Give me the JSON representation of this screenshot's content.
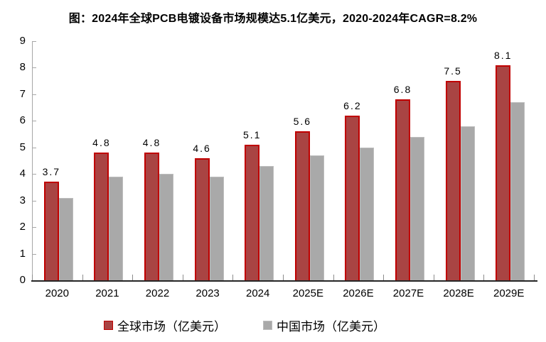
{
  "title": "图：2024年全球PCB电镀设备市场规模达5.1亿美元，2020-2024年CAGR=8.2%",
  "colors": {
    "global_fill": "#A94443",
    "global_border": "#C00000",
    "china_fill": "#A9A9A9",
    "china_border": "#BDBDBD",
    "y_axis": "#A6A6A6",
    "x_axis": "#262626",
    "tick": "#8C8C8C",
    "text": "#000000",
    "background": "#FFFFFF"
  },
  "chart_data": {
    "type": "bar",
    "title": "图：2024年全球PCB电镀设备市场规模达5.1亿美元，2020-2024年CAGR=8.2%",
    "categories": [
      "2020",
      "2021",
      "2022",
      "2023",
      "2024",
      "2025E",
      "2026E",
      "2027E",
      "2028E",
      "2029E"
    ],
    "series": [
      {
        "name": "全球市场（亿美元）",
        "values": [
          3.7,
          4.8,
          4.8,
          4.6,
          5.1,
          5.6,
          6.2,
          6.8,
          7.5,
          8.1
        ],
        "color": "#A94443",
        "border_color": "#C00000",
        "data_labels": [
          "3.7",
          "4.8",
          "4.8",
          "4.6",
          "5.1",
          "5.6",
          "6.2",
          "6.8",
          "7.5",
          "8.1"
        ]
      },
      {
        "name": "中国市场（亿美元）",
        "values": [
          3.1,
          3.9,
          4.0,
          3.9,
          4.3,
          4.7,
          5.0,
          5.4,
          5.8,
          6.7
        ],
        "color": "#A9A9A9",
        "border_color": "#BDBDBD",
        "data_labels": null
      }
    ],
    "xlabel": "",
    "ylabel": "",
    "ylim": [
      0,
      9
    ],
    "yticks": [
      0,
      1,
      2,
      3,
      4,
      5,
      6,
      7,
      8,
      9
    ],
    "grid": false,
    "legend_position": "bottom"
  },
  "legend": {
    "items": [
      {
        "label": "全球市场（亿美元）",
        "swatch": "red-square"
      },
      {
        "label": "中国市场（亿美元）",
        "swatch": "gray-square"
      }
    ]
  }
}
